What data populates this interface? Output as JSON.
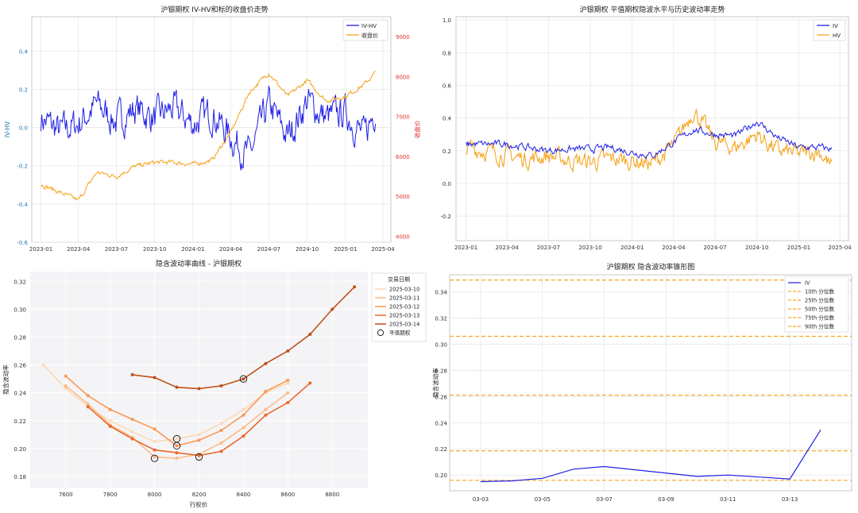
{
  "charts": [
    {
      "title": "沪银期权 IV-HV和标的收盘价走势",
      "ylabel": "IV-HV",
      "y2label": "收盘价",
      "yticks": [
        "-0.6",
        "-0.4",
        "-0.2",
        "0.0",
        "0.2",
        "0.4"
      ],
      "y2ticks": [
        "4000",
        "5000",
        "6000",
        "7000",
        "8000",
        "9000"
      ],
      "xticks": [
        "2023-01",
        "2023-04",
        "2023-07",
        "2023-10",
        "2024-01",
        "2024-04",
        "2024-07",
        "2024-10",
        "2025-01",
        "2025-04"
      ],
      "legend": [
        "IV-HV",
        "收盘价"
      ]
    },
    {
      "title": "沪银期权 平值期权隐波水平与历史波动率走势",
      "yticks": [
        "-0.2",
        "0.0",
        "0.2",
        "0.4",
        "0.6",
        "0.8",
        "1.0"
      ],
      "xticks": [
        "2023-01",
        "2023-04",
        "2023-07",
        "2023-10",
        "2024-01",
        "2024-04",
        "2024-07",
        "2024-10",
        "2025-01",
        "2025-04"
      ],
      "legend": [
        "IV",
        "HV"
      ]
    },
    {
      "title": "隐含波动率曲线 - 沪银期权",
      "xlabel": "行权价",
      "ylabel": "隐含波动率",
      "yticks": [
        "0.18",
        "0.20",
        "0.22",
        "0.24",
        "0.26",
        "0.28",
        "0.30",
        "0.32"
      ],
      "xticks": [
        "7600",
        "7800",
        "8000",
        "8200",
        "8400",
        "8600",
        "8800"
      ],
      "legend_title": "交易日期",
      "legend": [
        "2025-03-10",
        "2025-03-11",
        "2025-03-12",
        "2025-03-13",
        "2025-03-14",
        "平值期权"
      ]
    },
    {
      "title": "沪银期权 隐含波动率锥形图",
      "ylabel": "隐含波动率",
      "yticks": [
        "0.20",
        "0.22",
        "0.24",
        "0.26",
        "0.28",
        "0.30",
        "0.32",
        "0.34"
      ],
      "xticks": [
        "03-03",
        "03-05",
        "03-07",
        "03-09",
        "03-11",
        "03-13"
      ],
      "legend": [
        "IV",
        "10th 分位数",
        "25th 分位数",
        "50th 分位数",
        "75th 分位数",
        "90th 分位数"
      ]
    }
  ],
  "chart_data": [
    {
      "type": "line",
      "title": "沪银期权 IV-HV和标的收盘价走势",
      "x_range": [
        "2023-01-01",
        "2025-03-14"
      ],
      "ylim": [
        -0.6,
        0.58
      ],
      "y2lim": [
        3850,
        9500
      ],
      "series": [
        {
          "name": "IV-HV",
          "axis": "left",
          "color": "#1f1fe6",
          "x": [
            "2023-01-01",
            "2023-02-15",
            "2023-04-01",
            "2023-05-15",
            "2023-07-01",
            "2023-08-15",
            "2023-10-01",
            "2023-11-15",
            "2024-01-01",
            "2024-02-15",
            "2024-04-01",
            "2024-05-15",
            "2024-07-01",
            "2024-08-15",
            "2024-10-01",
            "2024-11-15",
            "2025-01-01",
            "2025-02-15",
            "2025-03-14"
          ],
          "values": [
            0.05,
            -0.02,
            0.02,
            0.12,
            0.03,
            0.1,
            0.05,
            0.1,
            0.02,
            0.08,
            -0.05,
            -0.15,
            0.12,
            -0.05,
            0.14,
            0.05,
            0.08,
            -0.05,
            0.1
          ]
        },
        {
          "name": "收盘价",
          "axis": "right",
          "color": "#f5a623",
          "x": [
            "2023-01-01",
            "2023-02-15",
            "2023-04-01",
            "2023-05-15",
            "2023-07-01",
            "2023-08-15",
            "2023-10-01",
            "2023-11-15",
            "2024-01-01",
            "2024-02-15",
            "2024-04-01",
            "2024-05-15",
            "2024-07-01",
            "2024-08-15",
            "2024-10-01",
            "2024-11-15",
            "2025-01-01",
            "2025-02-15",
            "2025-03-14"
          ],
          "values": [
            5300,
            5100,
            4900,
            5600,
            5500,
            5750,
            5850,
            5850,
            5800,
            5900,
            6600,
            7600,
            8100,
            7500,
            7900,
            7400,
            7500,
            7800,
            8100
          ]
        }
      ]
    },
    {
      "type": "line",
      "title": "沪银期权 平值期权隐波水平与历史波动率走势",
      "x_range": [
        "2023-01-01",
        "2025-03-14"
      ],
      "ylim": [
        -0.35,
        1.02
      ],
      "series": [
        {
          "name": "IV",
          "color": "#1f1fe6",
          "x": [
            "2023-01-01",
            "2023-02-15",
            "2023-04-01",
            "2023-05-15",
            "2023-07-01",
            "2023-08-15",
            "2023-10-01",
            "2023-11-15",
            "2024-01-01",
            "2024-02-15",
            "2024-04-01",
            "2024-05-15",
            "2024-07-01",
            "2024-08-15",
            "2024-10-01",
            "2024-11-15",
            "2025-01-01",
            "2025-02-15",
            "2025-03-14"
          ],
          "values": [
            0.24,
            0.24,
            0.24,
            0.22,
            0.2,
            0.21,
            0.21,
            0.22,
            0.19,
            0.17,
            0.25,
            0.33,
            0.3,
            0.29,
            0.38,
            0.28,
            0.22,
            0.22,
            0.21
          ]
        },
        {
          "name": "HV",
          "color": "#f5a623",
          "x": [
            "2023-01-01",
            "2023-02-15",
            "2023-04-01",
            "2023-05-15",
            "2023-07-01",
            "2023-08-15",
            "2023-10-01",
            "2023-11-15",
            "2024-01-01",
            "2024-02-15",
            "2024-04-01",
            "2024-05-15",
            "2024-07-01",
            "2024-08-15",
            "2024-10-01",
            "2024-11-15",
            "2025-01-01",
            "2025-02-15",
            "2025-03-14"
          ],
          "values": [
            0.22,
            0.2,
            0.17,
            0.15,
            0.17,
            0.14,
            0.13,
            0.15,
            0.14,
            0.12,
            0.23,
            0.45,
            0.25,
            0.22,
            0.3,
            0.2,
            0.18,
            0.2,
            0.1
          ]
        }
      ]
    },
    {
      "type": "line",
      "title": "隐含波动率曲线 - 沪银期权",
      "xlabel": "行权价",
      "ylabel": "隐含波动率",
      "xlim": [
        7440,
        8960
      ],
      "ylim": [
        0.172,
        0.327
      ],
      "series": [
        {
          "name": "2025-03-10",
          "color": "#fdd9b5",
          "x": [
            7500,
            7600,
            7700,
            7800,
            7900,
            8000,
            8100,
            8200,
            8300,
            8400,
            8500,
            8600
          ],
          "values": [
            0.26,
            0.243,
            0.23,
            0.22,
            0.212,
            0.205,
            0.207,
            0.21,
            0.218,
            0.228,
            0.24,
            0.247
          ]
        },
        {
          "name": "2025-03-11",
          "color": "#fcbb85",
          "x": [
            7600,
            7700,
            7800,
            7900,
            8000,
            8100,
            8200,
            8300,
            8400,
            8500,
            8600
          ],
          "values": [
            0.245,
            0.232,
            0.217,
            0.208,
            0.194,
            0.193,
            0.196,
            0.204,
            0.215,
            0.228,
            0.24
          ]
        },
        {
          "name": "2025-03-12",
          "color": "#fb9852",
          "x": [
            7600,
            7700,
            7800,
            7900,
            8000,
            8100,
            8200,
            8300,
            8400,
            8500,
            8600
          ],
          "values": [
            0.252,
            0.238,
            0.228,
            0.221,
            0.214,
            0.202,
            0.206,
            0.213,
            0.224,
            0.241,
            0.249
          ]
        },
        {
          "name": "2025-03-13",
          "color": "#e8692a",
          "x": [
            7700,
            7800,
            7900,
            8000,
            8100,
            8200,
            8300,
            8400,
            8500,
            8600,
            8700
          ],
          "values": [
            0.23,
            0.216,
            0.207,
            0.199,
            0.197,
            0.195,
            0.198,
            0.209,
            0.224,
            0.233,
            0.247
          ]
        },
        {
          "name": "2025-03-14",
          "color": "#c0501a",
          "x": [
            7900,
            8000,
            8100,
            8200,
            8300,
            8400,
            8500,
            8600,
            8700,
            8800,
            8900
          ],
          "values": [
            0.253,
            0.251,
            0.244,
            0.243,
            0.245,
            0.25,
            0.261,
            0.27,
            0.282,
            0.3,
            0.316
          ]
        }
      ],
      "atm_points": [
        {
          "x": 8000,
          "y": 0.193
        },
        {
          "x": 8100,
          "y": 0.207
        },
        {
          "x": 8100,
          "y": 0.202
        },
        {
          "x": 8200,
          "y": 0.194
        },
        {
          "x": 8400,
          "y": 0.25
        }
      ]
    },
    {
      "type": "line",
      "title": "沪银期权 隐含波动率锥形图",
      "ylabel": "隐含波动率",
      "xlim": [
        "2025-03-02",
        "2025-03-15"
      ],
      "ylim": [
        0.188,
        0.353
      ],
      "series": [
        {
          "name": "IV",
          "color": "#1f1fe6",
          "x": [
            "2025-03-03",
            "2025-03-04",
            "2025-03-05",
            "2025-03-06",
            "2025-03-07",
            "2025-03-10",
            "2025-03-11",
            "2025-03-12",
            "2025-03-13",
            "2025-03-14"
          ],
          "values": [
            0.195,
            0.1955,
            0.1975,
            0.2045,
            0.2065,
            0.199,
            0.2,
            0.1985,
            0.197,
            0.2345
          ]
        }
      ],
      "quantiles": [
        {
          "name": "10th 分位数",
          "value": 0.196
        },
        {
          "name": "25th 分位数",
          "value": 0.2185
        },
        {
          "name": "50th 分位数",
          "value": 0.261
        },
        {
          "name": "75th 分位数",
          "value": 0.306
        },
        {
          "name": "90th 分位数",
          "value": 0.349
        }
      ]
    }
  ]
}
